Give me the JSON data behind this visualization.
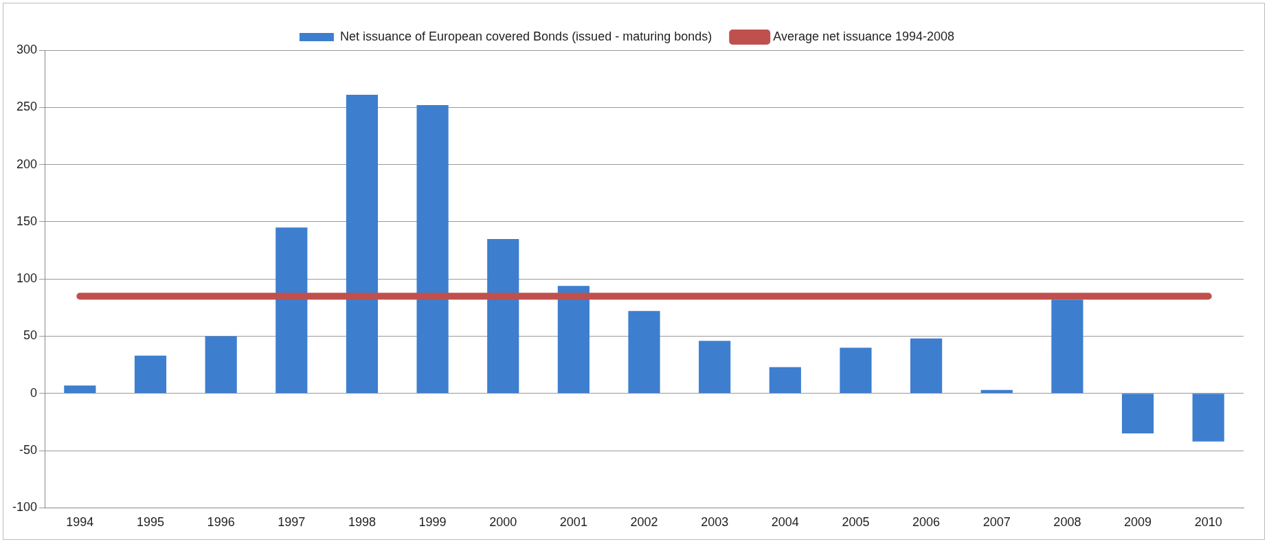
{
  "chart_data": {
    "type": "bar",
    "categories": [
      "1994",
      "1995",
      "1996",
      "1997",
      "1998",
      "1999",
      "2000",
      "2001",
      "2002",
      "2003",
      "2004",
      "2005",
      "2006",
      "2007",
      "2008",
      "2009",
      "2010"
    ],
    "series": [
      {
        "name": "Net issuance of European covered Bonds (issued - maturing bonds)",
        "color": "#3d7ecf",
        "values": [
          7,
          33,
          50,
          145,
          261,
          252,
          135,
          94,
          72,
          46,
          23,
          40,
          48,
          3,
          82,
          -35,
          -42
        ]
      },
      {
        "name": "Average net issuance 1994-2008",
        "type": "line",
        "color": "#c0504d",
        "marker": "none",
        "values": [
          85,
          85,
          85,
          85,
          85,
          85,
          85,
          85,
          85,
          85,
          85,
          85,
          85,
          85,
          85,
          85,
          85
        ]
      }
    ],
    "ylim": [
      -100,
      300
    ],
    "yticks": [
      -100,
      -50,
      0,
      50,
      100,
      150,
      200,
      250,
      300
    ],
    "grid": "y",
    "legend": "top"
  }
}
